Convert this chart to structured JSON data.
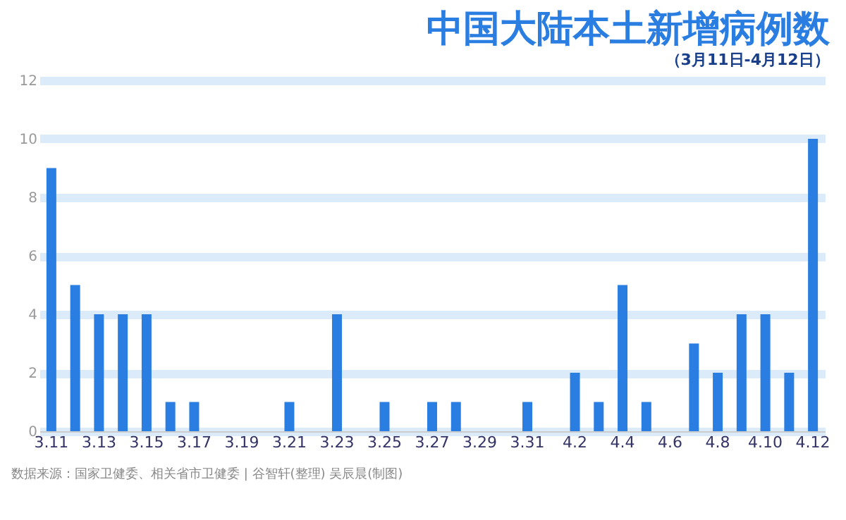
{
  "chart_data": {
    "type": "bar",
    "title": "中国大陆本土新增病例数",
    "subtitle": "（3月11日-4月12日）",
    "categories": [
      "3.11",
      null,
      "3.13",
      null,
      "3.15",
      null,
      "3.17",
      null,
      "3.19",
      null,
      "3.21",
      null,
      "3.23",
      null,
      "3.25",
      null,
      "3.27",
      null,
      "3.29",
      null,
      "3.31",
      null,
      "4.2",
      null,
      "4.4",
      null,
      "4.6",
      null,
      "4.8",
      null,
      "4.10",
      null,
      "4.12"
    ],
    "values": [
      9,
      5,
      4,
      4,
      4,
      1,
      1,
      0,
      0,
      0,
      1,
      0,
      4,
      0,
      1,
      0,
      1,
      1,
      0,
      0,
      1,
      0,
      2,
      1,
      5,
      1,
      0,
      3,
      2,
      4,
      4,
      2,
      10
    ],
    "color": "#2a7de1",
    "ylim": [
      0,
      12
    ],
    "yticks": [
      0,
      2,
      4,
      6,
      8,
      10,
      12
    ],
    "grid": "y",
    "annotations": [
      "数据来源：国家卫健委、相关省市卫健委  |  谷智轩(整理)  吴辰晨(制图)"
    ]
  }
}
